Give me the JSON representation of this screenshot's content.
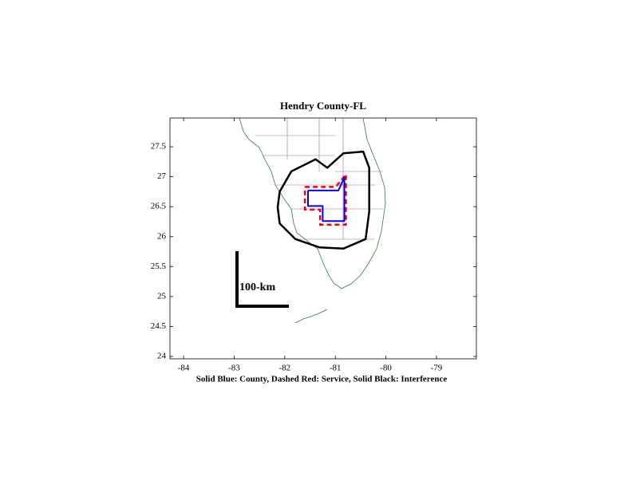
{
  "chart_data": {
    "type": "map",
    "title": "Hendry County-FL",
    "xlabel": "Solid Blue: County, Dashed Red: Service, Solid Black: Interference",
    "annotations": [
      "100-km"
    ],
    "xlim": [
      -84.27,
      -78.21
    ],
    "ylim": [
      23.96,
      27.98
    ],
    "xticks": [
      -84,
      -83,
      -82,
      -81,
      -80,
      -79
    ],
    "yticks": [
      24,
      24.5,
      25,
      25.5,
      26,
      26.5,
      27,
      27.5
    ],
    "series": [
      {
        "color": "#000000",
        "dashed": false,
        "width": 2.5,
        "x": [
          -82.1,
          -81.87,
          -81.39,
          -81.16,
          -80.84,
          -80.45,
          -80.33,
          -80.33,
          -80.4,
          -80.84,
          -81.31,
          -81.79,
          -82.1,
          -82.14,
          -82.1
        ],
        "y": [
          26.75,
          27.09,
          27.29,
          27.15,
          27.39,
          27.42,
          27.15,
          26.42,
          25.96,
          25.8,
          25.82,
          25.96,
          26.22,
          26.49,
          26.75
        ]
      },
      {
        "color": "#ff0000",
        "dashed": true,
        "width": 2.5,
        "x": [
          -81.6,
          -80.99,
          -80.79,
          -80.79,
          -81.3,
          -81.3,
          -81.6,
          -81.6
        ],
        "y": [
          26.83,
          26.83,
          27.04,
          26.2,
          26.2,
          26.45,
          26.45,
          26.83
        ]
      },
      {
        "color": "#0000ff",
        "dashed": false,
        "width": 2,
        "x": [
          -81.54,
          -80.94,
          -80.82,
          -80.82,
          -81.25,
          -81.25,
          -81.54,
          -81.54
        ],
        "y": [
          26.77,
          26.77,
          26.99,
          26.26,
          26.26,
          26.51,
          26.51,
          26.77
        ]
      }
    ]
  }
}
